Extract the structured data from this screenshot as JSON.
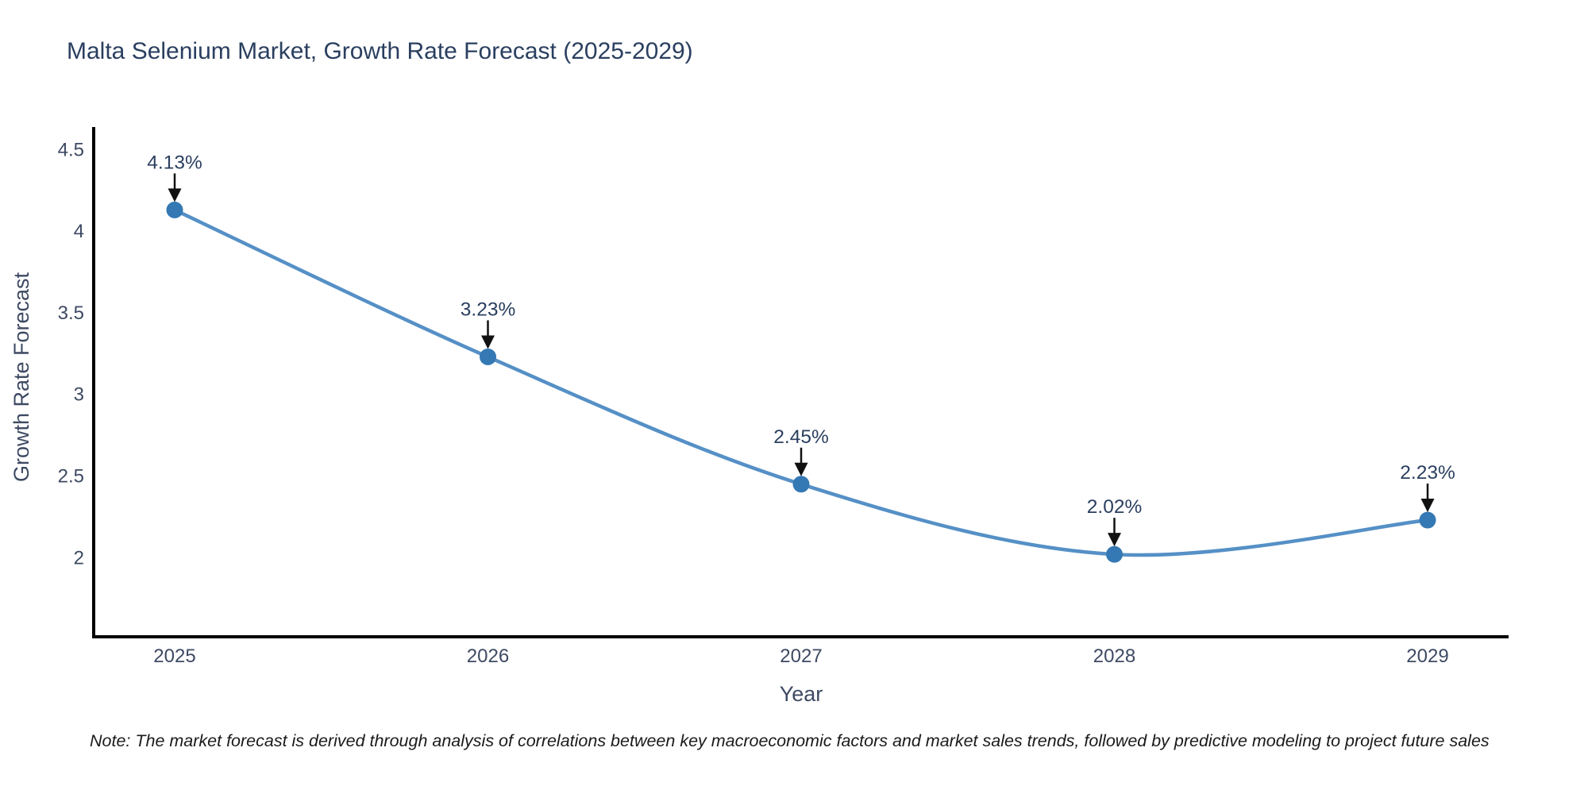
{
  "title": "Malta Selenium Market, Growth Rate Forecast (2025-2029)",
  "note": "Note: The market forecast is derived through analysis of correlations between key macroeconomic factors and market sales trends, followed by predictive modeling to project future sales",
  "chart_data": {
    "type": "line",
    "title": "Malta Selenium Market, Growth Rate Forecast (2025-2029)",
    "xlabel": "Year",
    "ylabel": "Growth Rate Forecast",
    "x": [
      "2025",
      "2026",
      "2027",
      "2028",
      "2029"
    ],
    "series": [
      {
        "name": "Growth Rate Forecast",
        "values": [
          4.13,
          3.23,
          2.45,
          2.02,
          2.23
        ]
      }
    ],
    "point_labels": [
      "4.13%",
      "3.23%",
      "2.45%",
      "2.02%",
      "2.23%"
    ],
    "yticks": [
      2,
      2.5,
      3,
      3.5,
      4,
      4.5
    ],
    "ylim": [
      1.515,
      4.638
    ],
    "grid": false,
    "legend": "none",
    "line_smooth": true,
    "colors": {
      "line": "#5590c6",
      "marker": "#3478b4",
      "axis": "#000000",
      "title_text": "#2a3f5f",
      "tick_text": "#3e4a63",
      "annotation_text": "#2a3f5f",
      "arrow": "#111111",
      "note_text": "#1a1a1a"
    }
  }
}
